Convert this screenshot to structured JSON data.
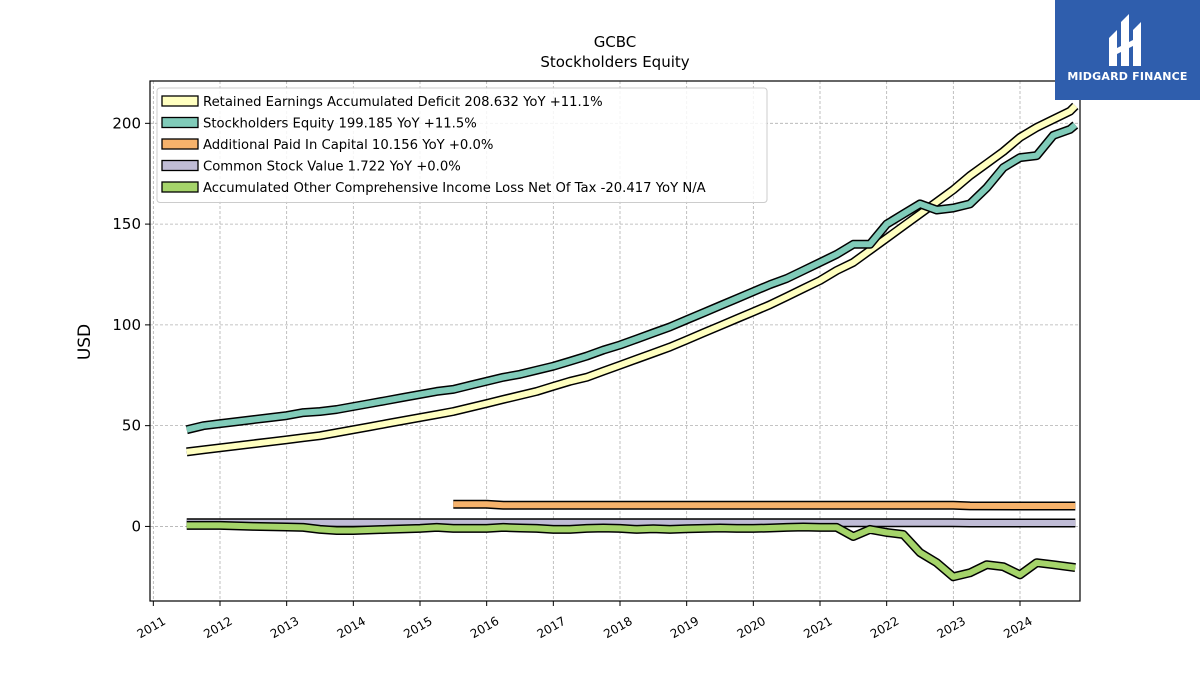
{
  "chart_data": {
    "type": "line",
    "title": "GCBC",
    "subtitle": "Stockholders  Equity",
    "ylabel": "USD",
    "xlabel": "",
    "xlim": [
      2010.95,
      2024.9
    ],
    "ylim": [
      -37,
      221
    ],
    "y_ticks": [
      0,
      50,
      100,
      150,
      200
    ],
    "x_ticks": [
      2011,
      2012,
      2013,
      2014,
      2015,
      2016,
      2017,
      2018,
      2019,
      2020,
      2021,
      2022,
      2023,
      2024
    ],
    "grid": true,
    "legend_position": "top-left",
    "series": [
      {
        "name": "Retained Earnings Accumulated Deficit  208.632 YoY +11.1%",
        "color": "#ffffc0",
        "points": [
          [
            2011.5,
            37
          ],
          [
            2011.75,
            38
          ],
          [
            2012.0,
            39
          ],
          [
            2012.25,
            40
          ],
          [
            2012.5,
            41
          ],
          [
            2012.75,
            42
          ],
          [
            2013.0,
            43
          ],
          [
            2013.25,
            44
          ],
          [
            2013.5,
            45
          ],
          [
            2013.75,
            46.5
          ],
          [
            2014.0,
            48
          ],
          [
            2014.25,
            49.5
          ],
          [
            2014.5,
            51
          ],
          [
            2014.75,
            52.5
          ],
          [
            2015.0,
            54
          ],
          [
            2015.25,
            55.5
          ],
          [
            2015.5,
            57
          ],
          [
            2015.75,
            59
          ],
          [
            2016.0,
            61
          ],
          [
            2016.25,
            63
          ],
          [
            2016.5,
            65
          ],
          [
            2016.75,
            67
          ],
          [
            2017.0,
            69.5
          ],
          [
            2017.25,
            72
          ],
          [
            2017.5,
            74
          ],
          [
            2017.75,
            77
          ],
          [
            2018.0,
            80
          ],
          [
            2018.25,
            83
          ],
          [
            2018.5,
            86
          ],
          [
            2018.75,
            89
          ],
          [
            2019.0,
            92.5
          ],
          [
            2019.25,
            96
          ],
          [
            2019.5,
            99.5
          ],
          [
            2019.75,
            103
          ],
          [
            2020.0,
            106.5
          ],
          [
            2020.25,
            110
          ],
          [
            2020.5,
            114
          ],
          [
            2020.75,
            118
          ],
          [
            2021.0,
            122
          ],
          [
            2021.25,
            127
          ],
          [
            2021.5,
            131
          ],
          [
            2021.75,
            137
          ],
          [
            2022.0,
            143
          ],
          [
            2022.25,
            149
          ],
          [
            2022.5,
            155
          ],
          [
            2022.75,
            161
          ],
          [
            2023.0,
            167
          ],
          [
            2023.25,
            174
          ],
          [
            2023.5,
            180
          ],
          [
            2023.75,
            186
          ],
          [
            2024.0,
            193
          ],
          [
            2024.25,
            198
          ],
          [
            2024.5,
            202
          ],
          [
            2024.75,
            206
          ],
          [
            2024.83,
            208.632
          ]
        ]
      },
      {
        "name": "Stockholders Equity  199.185 YoY +11.5%",
        "color": "#80cbb9",
        "points": [
          [
            2011.5,
            48
          ],
          [
            2011.75,
            50
          ],
          [
            2012.0,
            51
          ],
          [
            2012.25,
            52
          ],
          [
            2012.5,
            53
          ],
          [
            2012.75,
            54
          ],
          [
            2013.0,
            55
          ],
          [
            2013.25,
            56.5
          ],
          [
            2013.5,
            57
          ],
          [
            2013.75,
            58
          ],
          [
            2014.0,
            59.5
          ],
          [
            2014.25,
            61
          ],
          [
            2014.5,
            62.5
          ],
          [
            2014.75,
            64
          ],
          [
            2015.0,
            65.5
          ],
          [
            2015.25,
            67
          ],
          [
            2015.5,
            68
          ],
          [
            2015.75,
            70
          ],
          [
            2016.0,
            72
          ],
          [
            2016.25,
            74
          ],
          [
            2016.5,
            75.5
          ],
          [
            2016.75,
            77.5
          ],
          [
            2017.0,
            79.5
          ],
          [
            2017.25,
            82
          ],
          [
            2017.5,
            84.5
          ],
          [
            2017.75,
            87.5
          ],
          [
            2018.0,
            90
          ],
          [
            2018.25,
            93
          ],
          [
            2018.5,
            96
          ],
          [
            2018.75,
            99
          ],
          [
            2019.0,
            102.5
          ],
          [
            2019.25,
            106
          ],
          [
            2019.5,
            109.5
          ],
          [
            2019.75,
            113
          ],
          [
            2020.0,
            116.5
          ],
          [
            2020.25,
            120
          ],
          [
            2020.5,
            123
          ],
          [
            2020.75,
            127
          ],
          [
            2021.0,
            131
          ],
          [
            2021.25,
            135
          ],
          [
            2021.5,
            140
          ],
          [
            2021.75,
            140
          ],
          [
            2022.0,
            150
          ],
          [
            2022.25,
            155
          ],
          [
            2022.5,
            160
          ],
          [
            2022.75,
            157
          ],
          [
            2023.0,
            158
          ],
          [
            2023.25,
            160
          ],
          [
            2023.5,
            168
          ],
          [
            2023.75,
            178
          ],
          [
            2024.0,
            183
          ],
          [
            2024.25,
            184
          ],
          [
            2024.5,
            194
          ],
          [
            2024.75,
            197
          ],
          [
            2024.83,
            199.185
          ]
        ]
      },
      {
        "name": "Additional Paid In Capital  10.156 YoY +0.0%",
        "color": "#f6b26b",
        "points": [
          [
            2015.5,
            11
          ],
          [
            2016.0,
            11
          ],
          [
            2016.25,
            10.5
          ],
          [
            2017.0,
            10.5
          ],
          [
            2020.0,
            10.5
          ],
          [
            2023.0,
            10.5
          ],
          [
            2023.25,
            10.2
          ],
          [
            2024.83,
            10.156
          ]
        ]
      },
      {
        "name": "Common Stock Value  1.722 YoY +0.0%",
        "color": "#c0bcd6",
        "points": [
          [
            2011.5,
            1.8
          ],
          [
            2016.0,
            1.8
          ],
          [
            2020.0,
            1.8
          ],
          [
            2023.0,
            1.8
          ],
          [
            2023.25,
            1.722
          ],
          [
            2024.83,
            1.722
          ]
        ]
      },
      {
        "name": "Accumulated Other Comprehensive Income Loss Net Of Tax  -20.417 YoY N/A",
        "color": "#a5d46a",
        "points": [
          [
            2011.5,
            0.5
          ],
          [
            2012.0,
            0.5
          ],
          [
            2012.5,
            0
          ],
          [
            2013.0,
            -0.3
          ],
          [
            2013.25,
            -0.5
          ],
          [
            2013.5,
            -1.5
          ],
          [
            2013.75,
            -2
          ],
          [
            2014.0,
            -2
          ],
          [
            2014.5,
            -1.5
          ],
          [
            2015.0,
            -1
          ],
          [
            2015.25,
            -0.5
          ],
          [
            2015.5,
            -1
          ],
          [
            2016.0,
            -1
          ],
          [
            2016.25,
            -0.5
          ],
          [
            2016.5,
            -0.8
          ],
          [
            2016.75,
            -1
          ],
          [
            2017.0,
            -1.5
          ],
          [
            2017.25,
            -1.5
          ],
          [
            2017.5,
            -1
          ],
          [
            2017.75,
            -0.8
          ],
          [
            2018.0,
            -1
          ],
          [
            2018.25,
            -1.5
          ],
          [
            2018.5,
            -1.2
          ],
          [
            2018.75,
            -1.5
          ],
          [
            2019.0,
            -1.2
          ],
          [
            2019.25,
            -1
          ],
          [
            2019.5,
            -0.8
          ],
          [
            2019.75,
            -1
          ],
          [
            2020.0,
            -1
          ],
          [
            2020.25,
            -0.8
          ],
          [
            2020.5,
            -0.5
          ],
          [
            2020.75,
            -0.3
          ],
          [
            2021.0,
            -0.5
          ],
          [
            2021.25,
            -0.5
          ],
          [
            2021.5,
            -5
          ],
          [
            2021.75,
            -1.5
          ],
          [
            2022.0,
            -3
          ],
          [
            2022.25,
            -4
          ],
          [
            2022.5,
            -13
          ],
          [
            2022.75,
            -18
          ],
          [
            2023.0,
            -25
          ],
          [
            2023.25,
            -23
          ],
          [
            2023.5,
            -19
          ],
          [
            2023.75,
            -20
          ],
          [
            2024.0,
            -24
          ],
          [
            2024.25,
            -18
          ],
          [
            2024.5,
            -19
          ],
          [
            2024.83,
            -20.417
          ]
        ]
      }
    ]
  },
  "logo": {
    "text": "MIDGARD FINANCE",
    "background": "#2f5ead"
  }
}
